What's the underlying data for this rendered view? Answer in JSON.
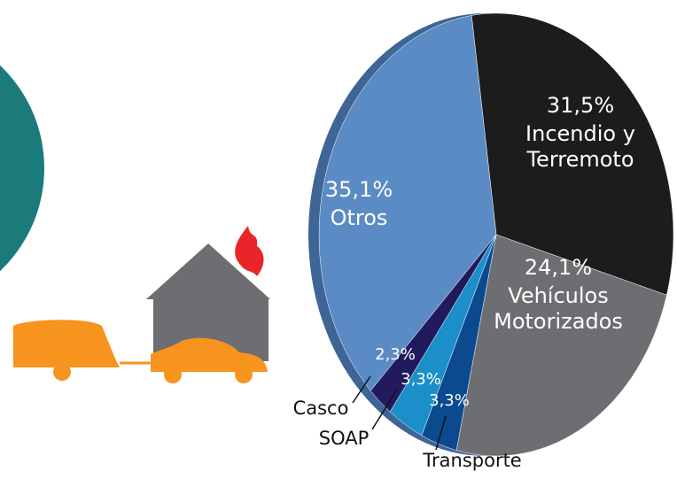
{
  "chart_data": {
    "type": "pie",
    "categories": [
      "Incendio y Terremoto",
      "Vehículos Motorizados",
      "Transporte",
      "SOAP",
      "Casco",
      "Otros"
    ],
    "values": [
      31.5,
      24.1,
      3.3,
      3.3,
      2.3,
      35.1
    ],
    "value_labels": [
      "31,5%",
      "24,1%",
      "3,3%",
      "3,3%",
      "2,3%",
      "35,1%"
    ],
    "colors": [
      "#1c1c1c",
      "#6d6e71",
      "#0b4a8f",
      "#1a8fc9",
      "#211b5e",
      "#5b8bc4"
    ]
  }
}
